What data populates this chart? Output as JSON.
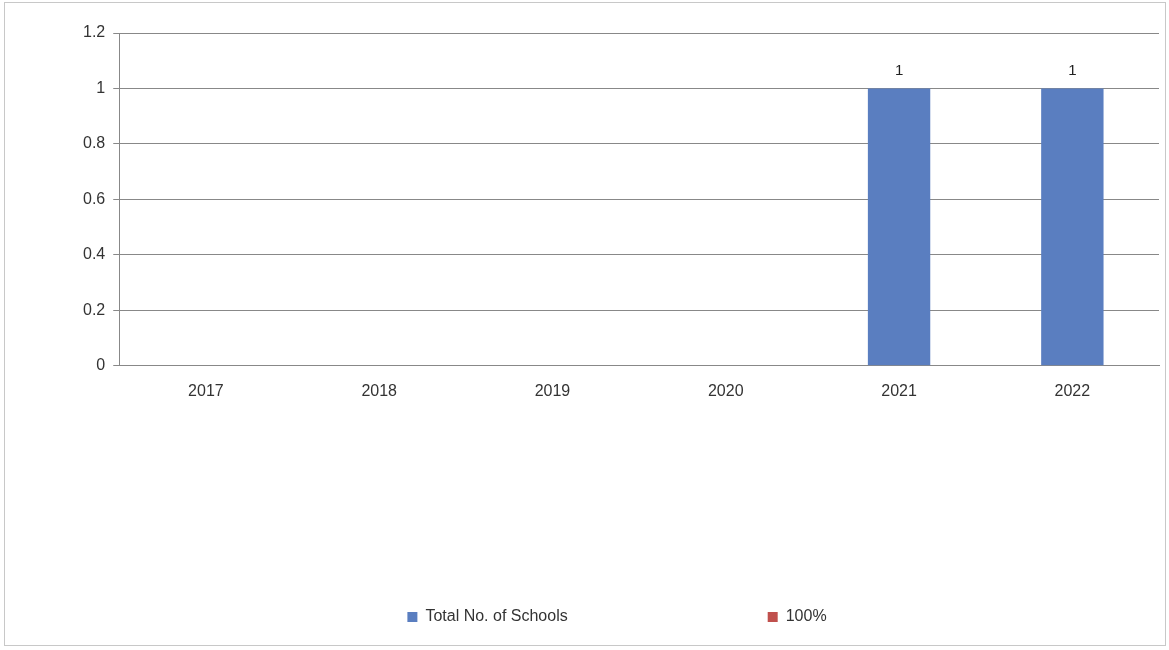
{
  "chart_data": {
    "type": "bar",
    "categories": [
      "2017",
      "2018",
      "2019",
      "2020",
      "2021",
      "2022"
    ],
    "series": [
      {
        "name": "Total No. of Schools",
        "color": "#5a7ec0",
        "values": [
          null,
          null,
          null,
          null,
          1,
          1
        ]
      },
      {
        "name": "100%",
        "color": "#c0504d",
        "values": [
          null,
          null,
          null,
          null,
          null,
          null
        ]
      }
    ],
    "ylim": [
      0,
      1.2
    ],
    "yticks": [
      0,
      0.2,
      0.4,
      0.6,
      0.8,
      1,
      1.2
    ],
    "grid": "y",
    "legend": "bottom",
    "data_labels": true
  }
}
